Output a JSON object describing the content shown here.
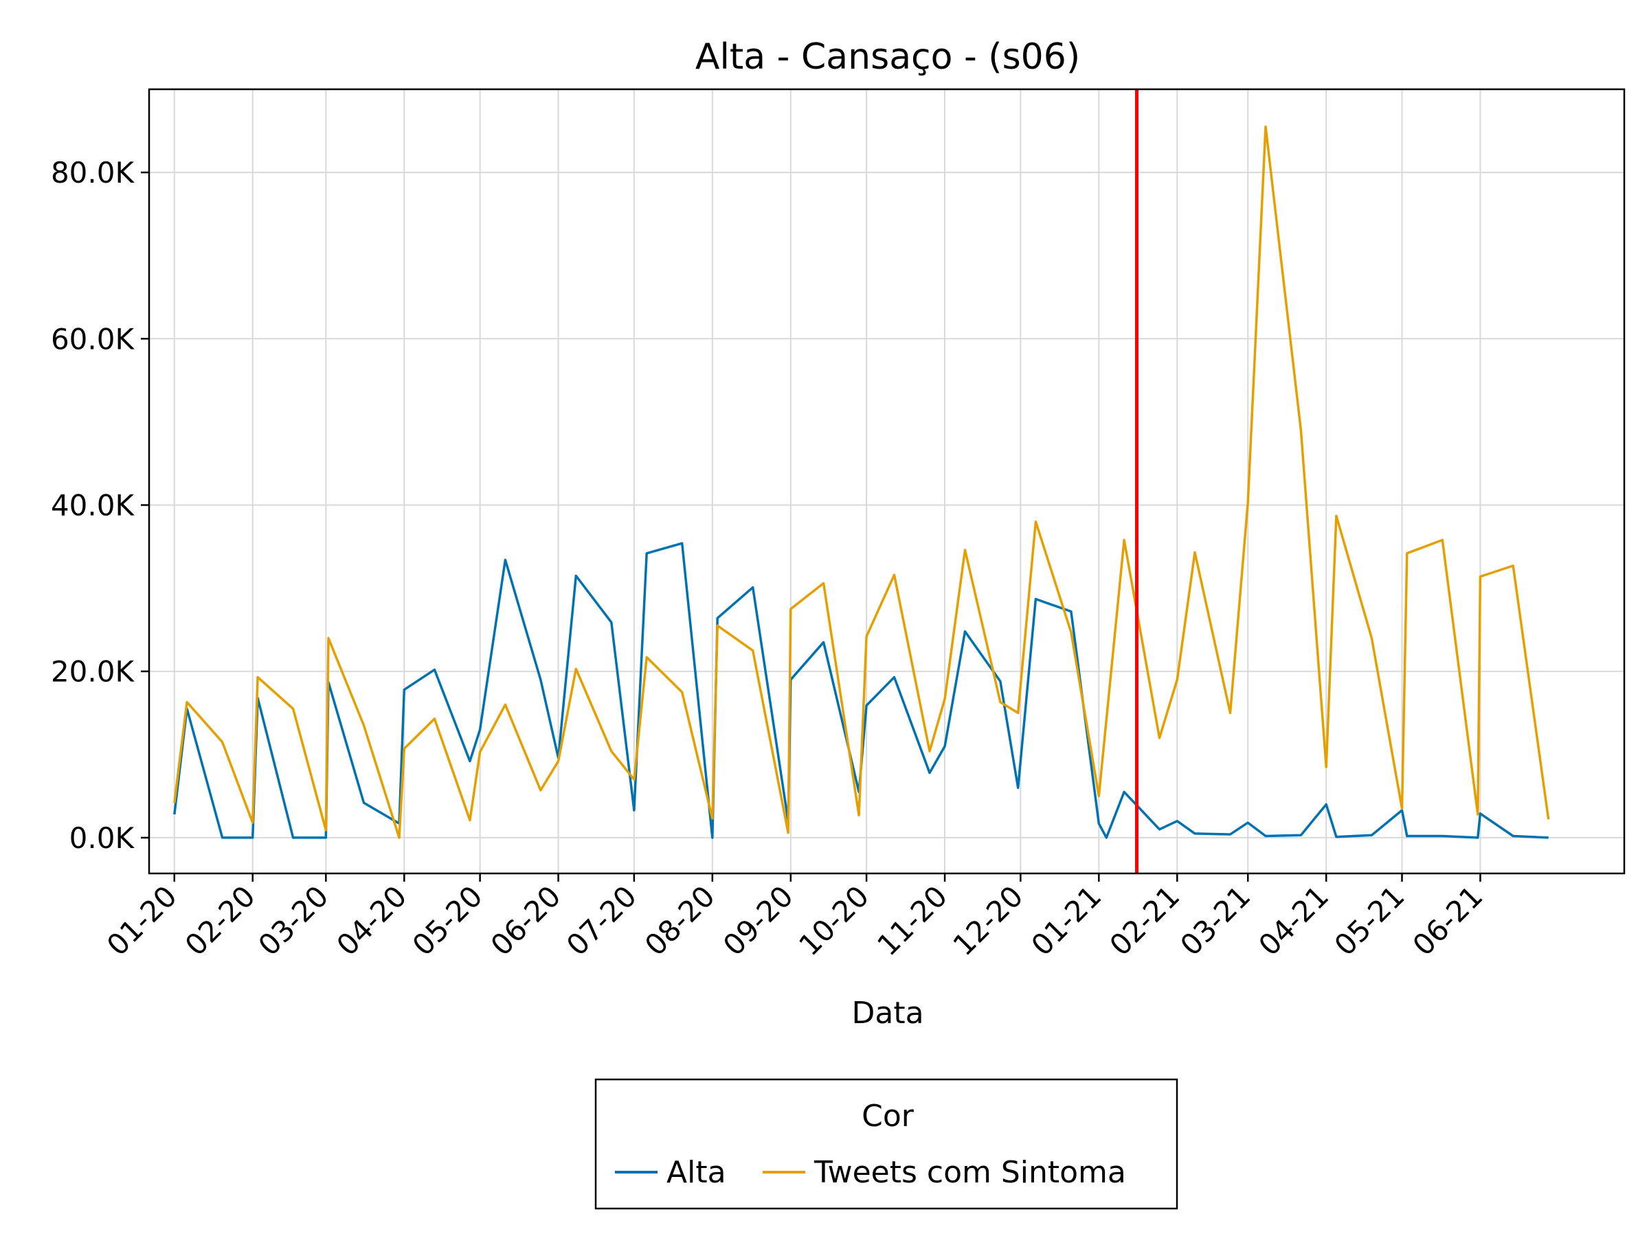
{
  "chart_data": {
    "type": "line",
    "title": "Alta - Cansaço - (s06)",
    "xlabel": "Data",
    "ylabel": "",
    "x_axis_type": "date",
    "x_range": [
      "2019-12-22",
      "2021-07-28"
    ],
    "xtick_labels": [
      {
        "date": "2020-01-01",
        "label": "01-20"
      },
      {
        "date": "2020-02-01",
        "label": "02-20"
      },
      {
        "date": "2020-03-01",
        "label": "03-20"
      },
      {
        "date": "2020-04-01",
        "label": "04-20"
      },
      {
        "date": "2020-05-01",
        "label": "05-20"
      },
      {
        "date": "2020-06-01",
        "label": "06-20"
      },
      {
        "date": "2020-07-01",
        "label": "07-20"
      },
      {
        "date": "2020-08-01",
        "label": "08-20"
      },
      {
        "date": "2020-09-01",
        "label": "09-20"
      },
      {
        "date": "2020-10-01",
        "label": "10-20"
      },
      {
        "date": "2020-11-01",
        "label": "11-20"
      },
      {
        "date": "2020-12-01",
        "label": "12-20"
      },
      {
        "date": "2021-01-01",
        "label": "01-21"
      },
      {
        "date": "2021-02-01",
        "label": "02-21"
      },
      {
        "date": "2021-03-01",
        "label": "03-21"
      },
      {
        "date": "2021-04-01",
        "label": "04-21"
      },
      {
        "date": "2021-05-01",
        "label": "05-21"
      },
      {
        "date": "2021-06-01",
        "label": "06-21"
      }
    ],
    "ylim": [
      -4300,
      90000
    ],
    "ytick_values": [
      0,
      20000,
      40000,
      60000,
      80000
    ],
    "ytick_labels": [
      "0.0K",
      "20.0K",
      "40.0K",
      "60.0K",
      "80.0K"
    ],
    "grid": true,
    "vertical_marker": {
      "date": "2021-01-16",
      "color": "#ff0000"
    },
    "legend": {
      "title": "Cor",
      "placement": "bottom-center"
    },
    "series": [
      {
        "name": "Alta",
        "color": "#0072b2",
        "points": [
          [
            "2020-01-01",
            2800
          ],
          [
            "2020-01-06",
            15500
          ],
          [
            "2020-01-20",
            0
          ],
          [
            "2020-02-01",
            0
          ],
          [
            "2020-02-03",
            16800
          ],
          [
            "2020-02-17",
            0
          ],
          [
            "2020-03-01",
            0
          ],
          [
            "2020-03-02",
            18700
          ],
          [
            "2020-03-16",
            4200
          ],
          [
            "2020-03-30",
            1700
          ],
          [
            "2020-04-01",
            17800
          ],
          [
            "2020-04-13",
            20200
          ],
          [
            "2020-04-27",
            9200
          ],
          [
            "2020-05-01",
            13000
          ],
          [
            "2020-05-11",
            33400
          ],
          [
            "2020-05-25",
            19000
          ],
          [
            "2020-06-01",
            9600
          ],
          [
            "2020-06-08",
            31500
          ],
          [
            "2020-06-22",
            25900
          ],
          [
            "2020-07-01",
            3300
          ],
          [
            "2020-07-06",
            34200
          ],
          [
            "2020-07-20",
            35400
          ],
          [
            "2020-08-01",
            0
          ],
          [
            "2020-08-03",
            26400
          ],
          [
            "2020-08-17",
            30100
          ],
          [
            "2020-08-31",
            2000
          ],
          [
            "2020-09-01",
            19000
          ],
          [
            "2020-09-14",
            23500
          ],
          [
            "2020-09-28",
            5500
          ],
          [
            "2020-10-01",
            15900
          ],
          [
            "2020-10-12",
            19300
          ],
          [
            "2020-10-26",
            7800
          ],
          [
            "2020-11-01",
            11000
          ],
          [
            "2020-11-09",
            24800
          ],
          [
            "2020-11-23",
            18800
          ],
          [
            "2020-11-30",
            6000
          ],
          [
            "2020-12-07",
            28700
          ],
          [
            "2020-12-21",
            27200
          ],
          [
            "2021-01-01",
            1700
          ],
          [
            "2021-01-04",
            0
          ],
          [
            "2021-01-11",
            5500
          ],
          [
            "2021-01-25",
            1000
          ],
          [
            "2021-02-01",
            2000
          ],
          [
            "2021-02-08",
            500
          ],
          [
            "2021-02-22",
            400
          ],
          [
            "2021-03-01",
            1800
          ],
          [
            "2021-03-08",
            200
          ],
          [
            "2021-03-22",
            300
          ],
          [
            "2021-04-01",
            4000
          ],
          [
            "2021-04-05",
            100
          ],
          [
            "2021-04-19",
            300
          ],
          [
            "2021-05-01",
            3300
          ],
          [
            "2021-05-03",
            200
          ],
          [
            "2021-05-17",
            200
          ],
          [
            "2021-05-31",
            0
          ],
          [
            "2021-06-01",
            2900
          ],
          [
            "2021-06-14",
            200
          ],
          [
            "2021-06-28",
            0
          ]
        ]
      },
      {
        "name": "Tweets com Sintoma",
        "color": "#e69f00",
        "points": [
          [
            "2020-01-01",
            4200
          ],
          [
            "2020-01-06",
            16300
          ],
          [
            "2020-01-20",
            11500
          ],
          [
            "2020-02-01",
            1800
          ],
          [
            "2020-02-03",
            19300
          ],
          [
            "2020-02-17",
            15500
          ],
          [
            "2020-03-01",
            900
          ],
          [
            "2020-03-02",
            24000
          ],
          [
            "2020-03-16",
            13500
          ],
          [
            "2020-03-30",
            0
          ],
          [
            "2020-04-01",
            10700
          ],
          [
            "2020-04-13",
            14300
          ],
          [
            "2020-04-27",
            2100
          ],
          [
            "2020-05-01",
            10300
          ],
          [
            "2020-05-11",
            16000
          ],
          [
            "2020-05-25",
            5700
          ],
          [
            "2020-06-01",
            9200
          ],
          [
            "2020-06-08",
            20300
          ],
          [
            "2020-06-22",
            10400
          ],
          [
            "2020-07-01",
            7000
          ],
          [
            "2020-07-06",
            21700
          ],
          [
            "2020-07-20",
            17500
          ],
          [
            "2020-08-01",
            2300
          ],
          [
            "2020-08-03",
            25500
          ],
          [
            "2020-08-17",
            22500
          ],
          [
            "2020-08-31",
            600
          ],
          [
            "2020-09-01",
            27500
          ],
          [
            "2020-09-14",
            30600
          ],
          [
            "2020-09-28",
            2700
          ],
          [
            "2020-10-01",
            24200
          ],
          [
            "2020-10-12",
            31600
          ],
          [
            "2020-10-26",
            10400
          ],
          [
            "2020-11-01",
            16700
          ],
          [
            "2020-11-09",
            34600
          ],
          [
            "2020-11-23",
            16300
          ],
          [
            "2020-11-30",
            15000
          ],
          [
            "2020-12-07",
            38000
          ],
          [
            "2020-12-21",
            24700
          ],
          [
            "2021-01-01",
            5000
          ],
          [
            "2021-01-11",
            35800
          ],
          [
            "2021-01-25",
            12000
          ],
          [
            "2021-02-01",
            19000
          ],
          [
            "2021-02-08",
            34300
          ],
          [
            "2021-02-22",
            15000
          ],
          [
            "2021-03-01",
            40300
          ],
          [
            "2021-03-08",
            85500
          ],
          [
            "2021-03-22",
            49000
          ],
          [
            "2021-04-01",
            8500
          ],
          [
            "2021-04-05",
            38700
          ],
          [
            "2021-04-19",
            24000
          ],
          [
            "2021-05-01",
            3500
          ],
          [
            "2021-05-03",
            34200
          ],
          [
            "2021-05-17",
            35800
          ],
          [
            "2021-05-31",
            2800
          ],
          [
            "2021-06-01",
            31400
          ],
          [
            "2021-06-14",
            32700
          ],
          [
            "2021-06-28",
            2200
          ]
        ]
      }
    ]
  }
}
